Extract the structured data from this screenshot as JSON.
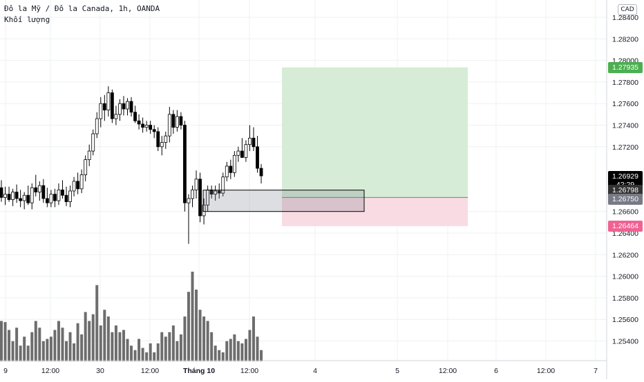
{
  "legend": {
    "symbol_line": "Đô la Mỹ / Đô la Canada, 1h, OANDA",
    "volume_label": "Khối lượng"
  },
  "currency_badge": "CAD",
  "price_axis": {
    "ticks": [
      "1.28400",
      "1.28200",
      "1.28000",
      "1.27800",
      "1.27600",
      "1.27400",
      "1.27200",
      "1.26600",
      "1.26400",
      "1.26200",
      "1.26000",
      "1.25800",
      "1.25600",
      "1.25400"
    ],
    "tick_values": [
      1.284,
      1.282,
      1.28,
      1.278,
      1.276,
      1.274,
      1.272,
      1.266,
      1.264,
      1.262,
      1.26,
      1.258,
      1.256,
      1.254
    ]
  },
  "price_labels": {
    "target": "1.27935",
    "last": "1.26929",
    "countdown": "42:29",
    "entry": "1.26798",
    "mid": "1.26750",
    "stop": "1.26464"
  },
  "time_axis": {
    "labels": [
      "9",
      "12:00",
      "30",
      "12:00",
      "Tháng 10",
      "12:00",
      "4",
      "5",
      "12:00",
      "6",
      "12:00",
      "7"
    ]
  },
  "colors": {
    "up": "#ffffff",
    "down": "#000000",
    "volume": "#6d6d6d",
    "profit_zone": "#d6ecd6",
    "loss_zone": "#f9dbe3",
    "target_label": "#4caf50",
    "stop_label": "#f06292",
    "last_label": "#000000",
    "entry_label": "#333333",
    "mid_label": "#787b86"
  },
  "candles": [
    [
      1.2682,
      1.2689,
      1.2669,
      1.2673
    ],
    [
      1.2673,
      1.2683,
      1.2666,
      1.2676
    ],
    [
      1.2676,
      1.2683,
      1.2669,
      1.2671
    ],
    [
      1.2671,
      1.2681,
      1.2665,
      1.2678
    ],
    [
      1.2678,
      1.2685,
      1.2668,
      1.2672
    ],
    [
      1.2672,
      1.268,
      1.2664,
      1.267
    ],
    [
      1.267,
      1.2678,
      1.2662,
      1.2675
    ],
    [
      1.2675,
      1.2684,
      1.2666,
      1.2668
    ],
    [
      1.2668,
      1.2686,
      1.2662,
      1.2682
    ],
    [
      1.2682,
      1.2694,
      1.2674,
      1.2678
    ],
    [
      1.2678,
      1.2688,
      1.267,
      1.2684
    ],
    [
      1.2684,
      1.269,
      1.2668,
      1.2672
    ],
    [
      1.2672,
      1.2682,
      1.2664,
      1.2668
    ],
    [
      1.2668,
      1.268,
      1.2664,
      1.2676
    ],
    [
      1.2676,
      1.2681,
      1.2664,
      1.267
    ],
    [
      1.267,
      1.2686,
      1.2666,
      1.268
    ],
    [
      1.268,
      1.2689,
      1.2672,
      1.2675
    ],
    [
      1.2675,
      1.2683,
      1.2665,
      1.2669
    ],
    [
      1.2669,
      1.2684,
      1.2664,
      1.2679
    ],
    [
      1.2679,
      1.2692,
      1.2674,
      1.2688
    ],
    [
      1.2688,
      1.2696,
      1.2676,
      1.2681
    ],
    [
      1.2681,
      1.2699,
      1.2677,
      1.2694
    ],
    [
      1.2694,
      1.2712,
      1.2688,
      1.2708
    ],
    [
      1.2708,
      1.2722,
      1.2702,
      1.2716
    ],
    [
      1.2716,
      1.2736,
      1.2712,
      1.2732
    ],
    [
      1.2732,
      1.2752,
      1.2728,
      1.2746
    ],
    [
      1.2746,
      1.2766,
      1.2738,
      1.276
    ],
    [
      1.276,
      1.2768,
      1.2744,
      1.2754
    ],
    [
      1.2754,
      1.2776,
      1.2748,
      1.277
    ],
    [
      1.277,
      1.2773,
      1.2742,
      1.2746
    ],
    [
      1.2746,
      1.2758,
      1.274,
      1.275
    ],
    [
      1.275,
      1.2764,
      1.2744,
      1.276
    ],
    [
      1.276,
      1.2767,
      1.2749,
      1.2755
    ],
    [
      1.2755,
      1.2765,
      1.2749,
      1.2762
    ],
    [
      1.2762,
      1.2766,
      1.2748,
      1.2752
    ],
    [
      1.2752,
      1.2758,
      1.2742,
      1.2744
    ],
    [
      1.2744,
      1.275,
      1.2736,
      1.2741
    ],
    [
      1.2741,
      1.2747,
      1.2733,
      1.2738
    ],
    [
      1.2738,
      1.2744,
      1.2734,
      1.274
    ],
    [
      1.274,
      1.2744,
      1.2732,
      1.2736
    ],
    [
      1.2736,
      1.274,
      1.2728,
      1.2734
    ],
    [
      1.2734,
      1.2738,
      1.2716,
      1.272
    ],
    [
      1.272,
      1.273,
      1.2712,
      1.2724
    ],
    [
      1.2724,
      1.2734,
      1.2718,
      1.273
    ],
    [
      1.273,
      1.2757,
      1.2724,
      1.275
    ],
    [
      1.275,
      1.2754,
      1.2732,
      1.2738
    ],
    [
      1.2738,
      1.2754,
      1.2734,
      1.2748
    ],
    [
      1.2748,
      1.2752,
      1.2736,
      1.274
    ],
    [
      1.274,
      1.2744,
      1.266,
      1.2668
    ],
    [
      1.2668,
      1.2676,
      1.263,
      1.2672
    ],
    [
      1.2672,
      1.2684,
      1.2664,
      1.268
    ],
    [
      1.268,
      1.2698,
      1.2672,
      1.269
    ],
    [
      1.269,
      1.2696,
      1.265,
      1.2656
    ],
    [
      1.2656,
      1.2672,
      1.2648,
      1.2666
    ],
    [
      1.2666,
      1.2684,
      1.266,
      1.268
    ],
    [
      1.268,
      1.2684,
      1.2672,
      1.2676
    ],
    [
      1.2676,
      1.2684,
      1.267,
      1.2679
    ],
    [
      1.2679,
      1.2686,
      1.2672,
      1.2677
    ],
    [
      1.2677,
      1.2696,
      1.2674,
      1.2692
    ],
    [
      1.2692,
      1.2706,
      1.2688,
      1.2702
    ],
    [
      1.2702,
      1.2708,
      1.269,
      1.2696
    ],
    [
      1.2696,
      1.2716,
      1.2692,
      1.2712
    ],
    [
      1.2712,
      1.272,
      1.2706,
      1.2716
    ],
    [
      1.2716,
      1.2728,
      1.271,
      1.271
    ],
    [
      1.271,
      1.2726,
      1.2706,
      1.2722
    ],
    [
      1.2722,
      1.274,
      1.2716,
      1.2728
    ],
    [
      1.2728,
      1.2738,
      1.2716,
      1.272
    ],
    [
      1.272,
      1.273,
      1.2696,
      1.27
    ],
    [
      1.27,
      1.2704,
      1.2686,
      1.2693
    ]
  ],
  "volumes": [
    1800,
    1750,
    1400,
    900,
    1500,
    700,
    1100,
    700,
    1300,
    1800,
    1500,
    900,
    1000,
    1100,
    1400,
    1800,
    1500,
    900,
    1300,
    800,
    1700,
    1200,
    2200,
    1800,
    2100,
    3400,
    1600,
    2300,
    2000,
    1300,
    1600,
    1300,
    1400,
    1000,
    700,
    500,
    1000,
    600,
    400,
    800,
    400,
    800,
    1300,
    1100,
    1300,
    1600,
    900,
    1200,
    2000,
    3100,
    4000,
    3200,
    2300,
    2000,
    1800,
    1300,
    700,
    500,
    400,
    900,
    1000,
    1200,
    900,
    800,
    1000,
    1400,
    2000,
    1100,
    500
  ]
}
